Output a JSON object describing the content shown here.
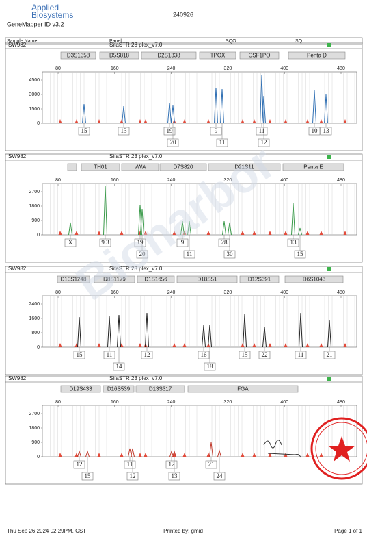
{
  "header": {
    "brand": [
      "Applied",
      "Biosystems"
    ],
    "software": "GeneMapper ID v3.2",
    "run": "240926"
  },
  "columns": [
    "Sample Name",
    "Panel",
    "SQO",
    "SQ"
  ],
  "panels": [
    {
      "sample": "SW982",
      "panel": "SifaSTR 23 plex_v7.0",
      "loci": [
        "D3S1358",
        "D5S818",
        "D2S1338",
        "TPOX",
        "CSF1PO",
        "Penta D"
      ],
      "xticks": [
        80,
        160,
        240,
        320,
        400,
        480
      ],
      "yticks": [
        4500,
        3000,
        1500,
        0
      ],
      "alleles": [
        [
          "15",
          "13",
          "19",
          "9",
          "11",
          "10",
          "13"
        ],
        [
          "20",
          "11",
          "12"
        ]
      ]
    },
    {
      "sample": "SW982",
      "panel": "SifaSTR 23 plex_v7.0",
      "loci": [
        "TH01",
        "vWA",
        "D7S820",
        "D21S11",
        "Penta E"
      ],
      "xticks": [
        80,
        160,
        240,
        320,
        400,
        480
      ],
      "yticks": [
        2700,
        1800,
        900,
        0
      ],
      "alleles": [
        [
          "X",
          "9.3",
          "19",
          "9",
          "28",
          "13"
        ],
        [
          "20",
          "11",
          "30",
          "15"
        ]
      ]
    },
    {
      "sample": "SW982",
      "panel": "SifaSTR 23 plex_v7.0",
      "loci": [
        "D10S1248",
        "D8S1179",
        "D1S1656",
        "D18S51",
        "D12S391",
        "D6S1043"
      ],
      "xticks": [
        80,
        160,
        240,
        320,
        400,
        480
      ],
      "yticks": [
        2400,
        1600,
        800,
        0
      ],
      "alleles": [
        [
          "15",
          "11",
          "12",
          "16",
          "15",
          "22",
          "11",
          "21"
        ],
        [
          "14",
          "18"
        ]
      ]
    },
    {
      "sample": "SW982",
      "panel": "SifaSTR 23 plex_v7.0",
      "loci": [
        "D19S433",
        "D16S539",
        "D13S317",
        "FGA"
      ],
      "xticks": [
        80,
        160,
        240,
        320,
        400,
        480
      ],
      "yticks": [
        2700,
        1800,
        900,
        0
      ],
      "alleles": [
        [
          "12",
          "11",
          "12",
          "21"
        ],
        [
          "15",
          "12",
          "13",
          "24"
        ]
      ]
    }
  ],
  "watermark": "Bionarbor",
  "footer": {
    "date": "Thu Sep 26,2024 02:29PM, CST",
    "printed_by": "Printed by: gmid",
    "page": "Page 1 of 1"
  }
}
